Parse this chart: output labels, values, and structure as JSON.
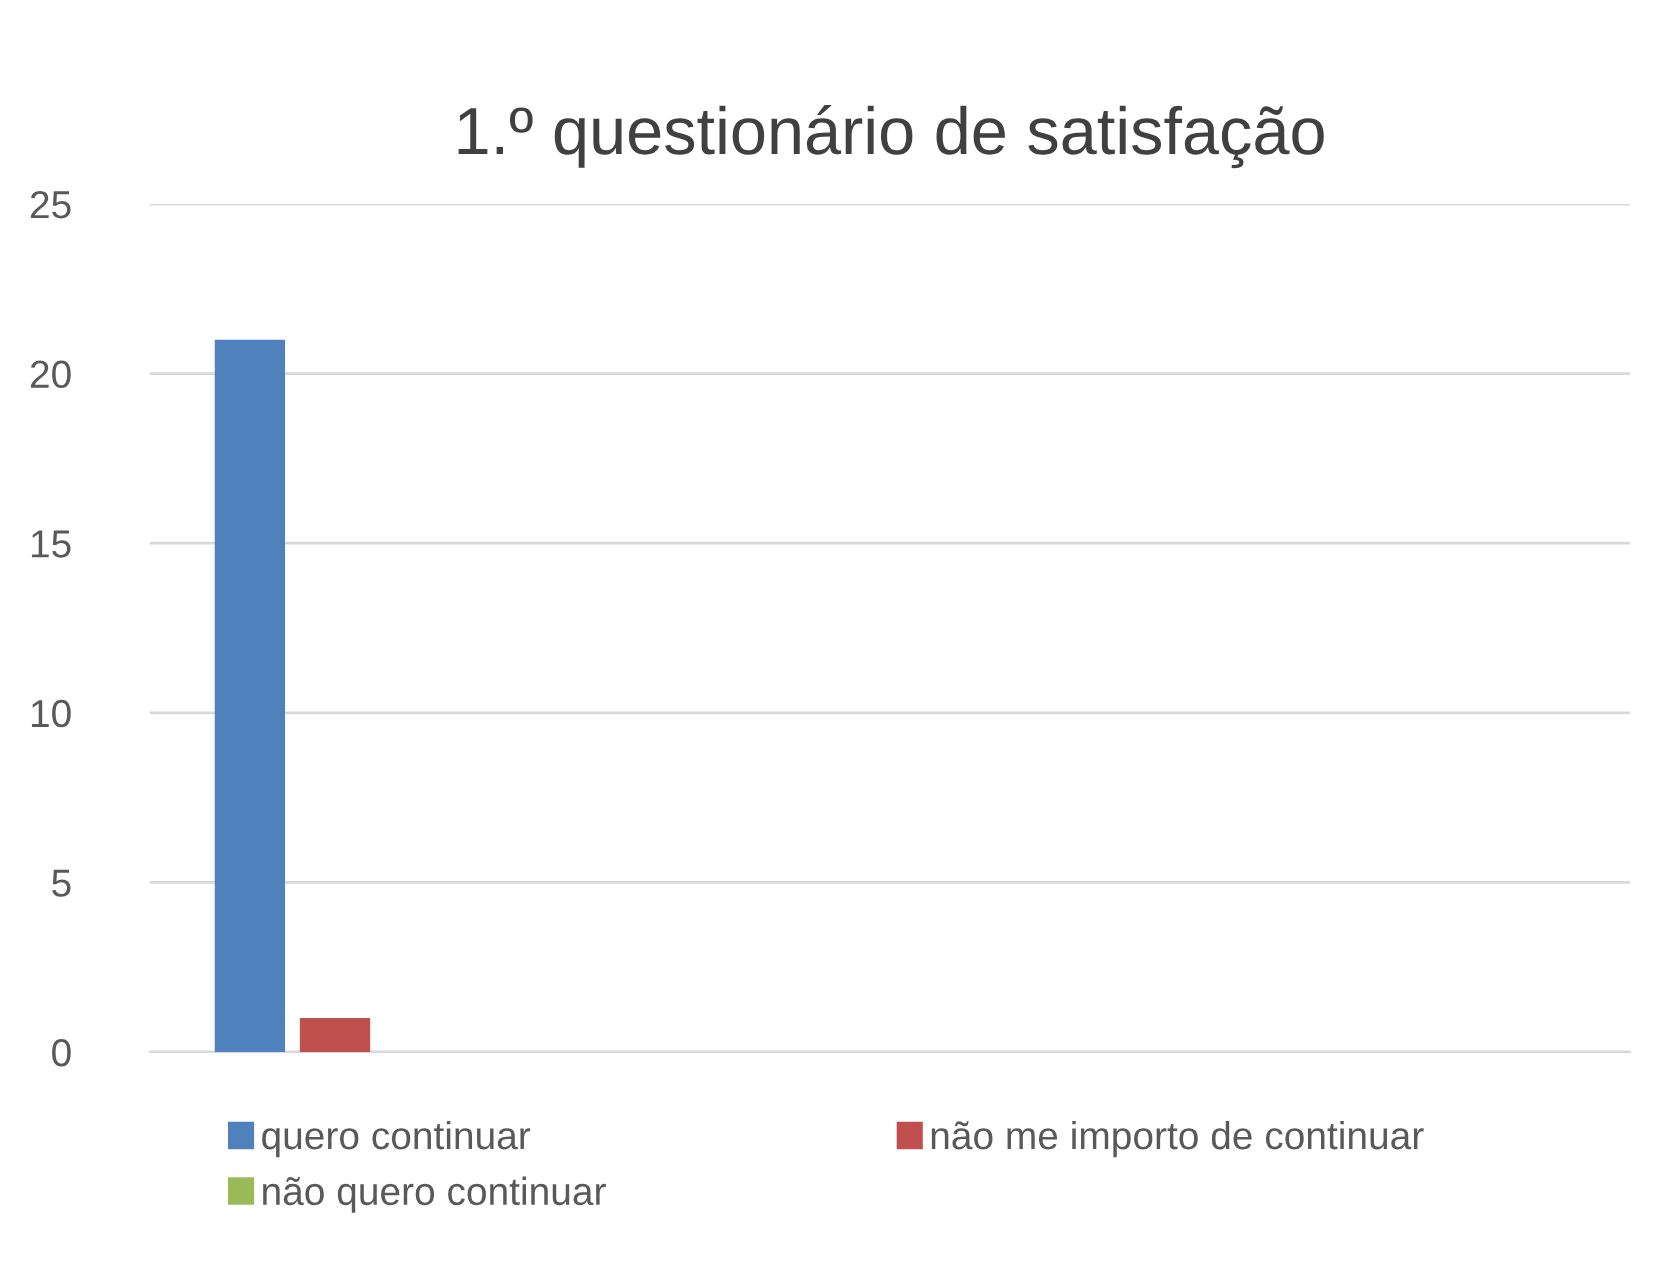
{
  "chart_data": {
    "type": "bar",
    "title": "1.º questionário de satisfação",
    "categories": [
      null,
      null,
      null,
      null
    ],
    "series": [
      {
        "name": "quero continuar",
        "color": "#4f81bd",
        "values": [
          21,
          null,
          null,
          null
        ]
      },
      {
        "name": "não me importo de continuar",
        "color": "#c0504d",
        "values": [
          1,
          null,
          null,
          null
        ]
      },
      {
        "name": "não quero continuar",
        "color": "#9bbb59",
        "values": [
          0,
          null,
          null,
          null
        ]
      }
    ],
    "ylim": [
      0,
      25
    ],
    "yticks": [
      0,
      5,
      10,
      15,
      20,
      25
    ],
    "grid": "y",
    "legend": "bottom"
  }
}
